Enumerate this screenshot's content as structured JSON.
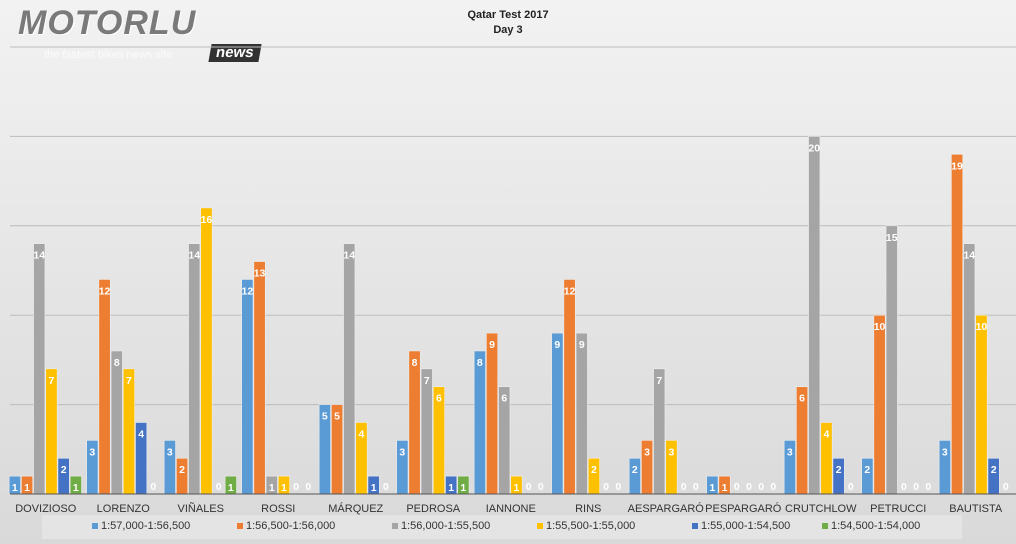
{
  "logo": {
    "brand": "MOTORLU",
    "tagline": "the fastest bikes news site",
    "badge": "news"
  },
  "chart_data": {
    "type": "bar",
    "title": "Qatar Test 2017",
    "subtitle": "Day 3",
    "xlabel": "",
    "ylabel": "",
    "ylim": [
      0,
      25
    ],
    "grid": true,
    "legend": "bottom",
    "categories": [
      "DOVIZIOSO",
      "LORENZO",
      "VIÑALES",
      "ROSSI",
      "MÁRQUEZ",
      "PEDROSA",
      "IANNONE",
      "RINS",
      "AESPARGARÓ",
      "PESPARGARÓ",
      "CRUTCHLOW",
      "PETRUCCI",
      "BAUTISTA"
    ],
    "series": [
      {
        "name": "1:57,000-1:56,500",
        "color": "#5b9bd5",
        "values": [
          1,
          3,
          3,
          12,
          5,
          3,
          8,
          9,
          2,
          1,
          3,
          2,
          3
        ]
      },
      {
        "name": "1:56,500-1:56,000",
        "color": "#ed7d31",
        "values": [
          1,
          12,
          2,
          13,
          5,
          8,
          9,
          12,
          3,
          1,
          6,
          10,
          19
        ]
      },
      {
        "name": "1:56,000-1:55,500",
        "color": "#a5a5a5",
        "values": [
          14,
          8,
          14,
          1,
          14,
          7,
          6,
          9,
          7,
          0,
          20,
          15,
          14
        ]
      },
      {
        "name": "1:55,500-1:55,000",
        "color": "#ffc000",
        "values": [
          7,
          7,
          16,
          1,
          4,
          6,
          1,
          2,
          3,
          0,
          4,
          0,
          10
        ]
      },
      {
        "name": "1:55,000-1:54,500",
        "color": "#4472c4",
        "values": [
          2,
          4,
          0,
          0,
          1,
          1,
          0,
          0,
          0,
          0,
          2,
          0,
          2
        ]
      },
      {
        "name": "1:54,500-1:54,000",
        "color": "#70ad47",
        "values": [
          1,
          0,
          1,
          0,
          0,
          1,
          0,
          0,
          0,
          0,
          0,
          0,
          0
        ]
      }
    ]
  }
}
